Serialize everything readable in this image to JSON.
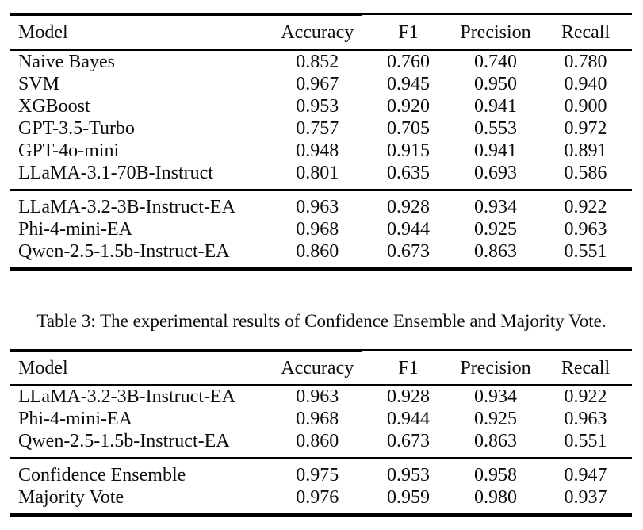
{
  "page": {
    "background": "#ffffff",
    "text_color": "#0d0d0d",
    "rule_color": "#000000"
  },
  "columns": {
    "model": "Model",
    "accuracy": "Accuracy",
    "f1": "F1",
    "precision": "Precision",
    "recall": "Recall"
  },
  "upper_table": {
    "groups": [
      {
        "rows": [
          {
            "model": "Naive Bayes",
            "accuracy": "0.852",
            "f1": "0.760",
            "precision": "0.740",
            "recall": "0.780"
          },
          {
            "model": "SVM",
            "accuracy": "0.967",
            "f1": "0.945",
            "precision": "0.950",
            "recall": "0.940"
          },
          {
            "model": "XGBoost",
            "accuracy": "0.953",
            "f1": "0.920",
            "precision": "0.941",
            "recall": "0.900"
          },
          {
            "model": "GPT-3.5-Turbo",
            "accuracy": "0.757",
            "f1": "0.705",
            "precision": "0.553",
            "recall": "0.972"
          },
          {
            "model": "GPT-4o-mini",
            "accuracy": "0.948",
            "f1": "0.915",
            "precision": "0.941",
            "recall": "0.891"
          },
          {
            "model": "LLaMA-3.1-70B-Instruct",
            "accuracy": "0.801",
            "f1": "0.635",
            "precision": "0.693",
            "recall": "0.586"
          }
        ]
      },
      {
        "rows": [
          {
            "model": "LLaMA-3.2-3B-Instruct-EA",
            "accuracy": "0.963",
            "f1": "0.928",
            "precision": "0.934",
            "recall": "0.922"
          },
          {
            "model": "Phi-4-mini-EA",
            "accuracy": "0.968",
            "f1": "0.944",
            "precision": "0.925",
            "recall": "0.963"
          },
          {
            "model": "Qwen-2.5-1.5b-Instruct-EA",
            "accuracy": "0.860",
            "f1": "0.673",
            "precision": "0.863",
            "recall": "0.551"
          }
        ]
      }
    ]
  },
  "caption": {
    "text": "Table 3: The experimental results of Confidence Ensemble and Majority Vote."
  },
  "lower_table": {
    "groups": [
      {
        "rows": [
          {
            "model": "LLaMA-3.2-3B-Instruct-EA",
            "accuracy": "0.963",
            "f1": "0.928",
            "precision": "0.934",
            "recall": "0.922"
          },
          {
            "model": "Phi-4-mini-EA",
            "accuracy": "0.968",
            "f1": "0.944",
            "precision": "0.925",
            "recall": "0.963"
          },
          {
            "model": "Qwen-2.5-1.5b-Instruct-EA",
            "accuracy": "0.860",
            "f1": "0.673",
            "precision": "0.863",
            "recall": "0.551"
          }
        ]
      },
      {
        "rows": [
          {
            "model": "Confidence Ensemble",
            "accuracy": "0.975",
            "f1": "0.953",
            "precision": "0.958",
            "recall": "0.947"
          },
          {
            "model": "Majority Vote",
            "accuracy": "0.976",
            "f1": "0.959",
            "precision": "0.980",
            "recall": "0.937"
          }
        ]
      }
    ]
  }
}
